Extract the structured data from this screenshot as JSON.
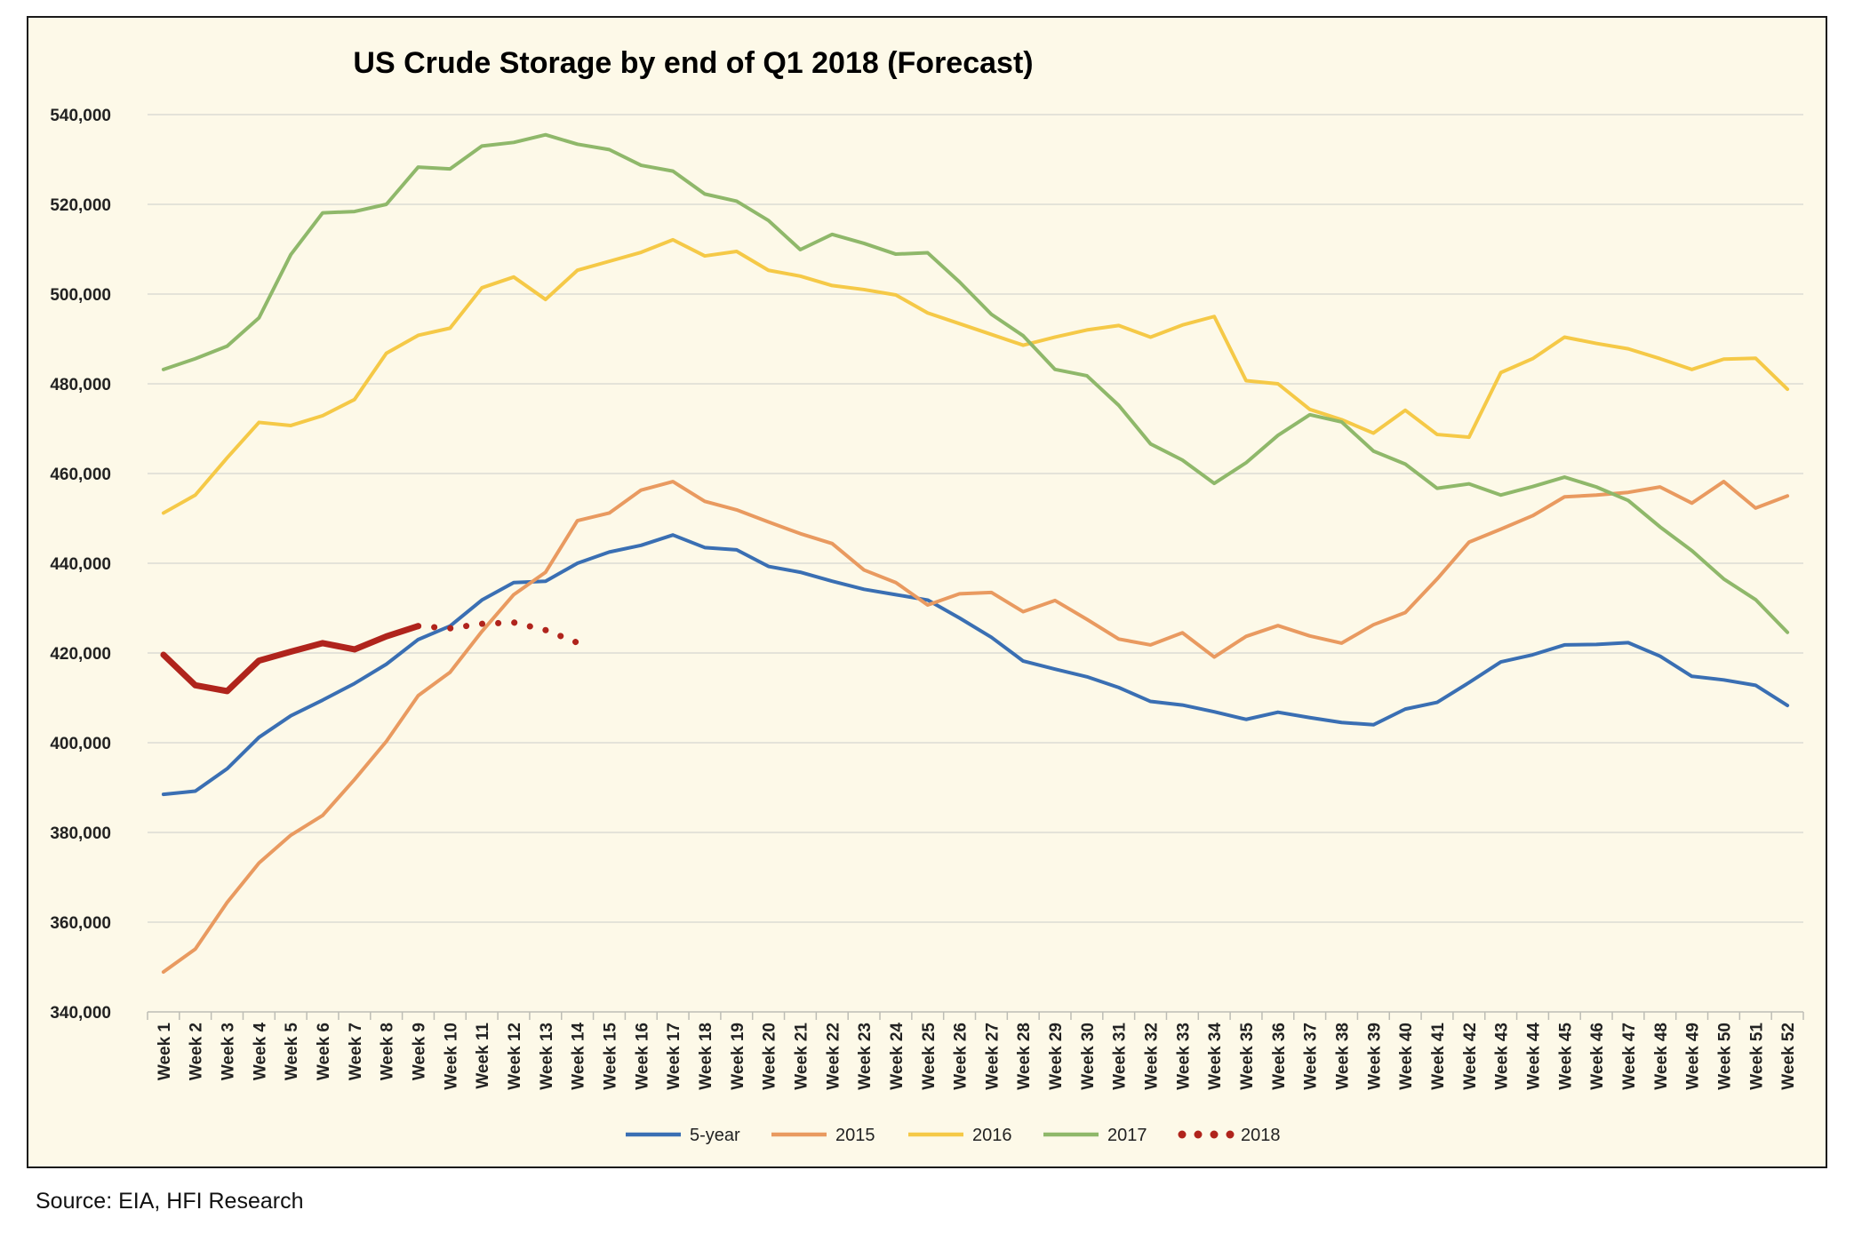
{
  "chart_data": {
    "type": "line",
    "title": "US Crude Storage by end of Q1 2018 (Forecast)",
    "xlabel": "",
    "ylabel": "",
    "ylim": [
      340000,
      540000
    ],
    "y_ticks": [
      540000,
      520000,
      500000,
      480000,
      460000,
      440000,
      420000,
      400000,
      380000,
      360000,
      340000
    ],
    "y_tick_labels": [
      "540,000",
      "520,000",
      "500,000",
      "480,000",
      "460,000",
      "440,000",
      "420,000",
      "400,000",
      "380,000",
      "360,000",
      "340,000"
    ],
    "grid": true,
    "legend_position": "bottom",
    "categories": [
      "Week 1",
      "Week 2",
      "Week 3",
      "Week 4",
      "Week 5",
      "Week 6",
      "Week 7",
      "Week 8",
      "Week 9",
      "Week 10",
      "Week 11",
      "Week 12",
      "Week 13",
      "Week 14",
      "Week 15",
      "Week 16",
      "Week 17",
      "Week 18",
      "Week 19",
      "Week 20",
      "Week 21",
      "Week 22",
      "Week 23",
      "Week 24",
      "Week 25",
      "Week 26",
      "Week 27",
      "Week 28",
      "Week 29",
      "Week 30",
      "Week 31",
      "Week 32",
      "Week 33",
      "Week 34",
      "Week 35",
      "Week 36",
      "Week 37",
      "Week 38",
      "Week 39",
      "Week 40",
      "Week 41",
      "Week 42",
      "Week 43",
      "Week 44",
      "Week 45",
      "Week 46",
      "Week 47",
      "Week 48",
      "Week 49",
      "Week 50",
      "Week 51",
      "Week 52"
    ],
    "series": [
      {
        "name": "5-year",
        "color": "#3a6fb3",
        "style": "solid",
        "values": [
          388500,
          389200,
          394200,
          401200,
          406000,
          409500,
          413200,
          417500,
          423000,
          426000,
          431800,
          435700,
          436000,
          440000,
          442500,
          444000,
          446300,
          443500,
          443000,
          439300,
          438000,
          436000,
          434200,
          433000,
          431800,
          427800,
          423500,
          418200,
          416400,
          414700,
          412300,
          409200,
          408400,
          406900,
          405200,
          406800,
          405600,
          404500,
          404000,
          407500,
          409000,
          413400,
          418000,
          419600,
          421800,
          421900,
          422300,
          419300,
          414800,
          414000,
          412800,
          408300
        ]
      },
      {
        "name": "2015",
        "color": "#e99a60",
        "style": "solid",
        "values": [
          348900,
          354000,
          364400,
          373200,
          379400,
          383800,
          391800,
          400300,
          410500,
          415700,
          424800,
          433000,
          438000,
          449500,
          451200,
          456300,
          458200,
          453800,
          451900,
          449200,
          446600,
          444400,
          438500,
          435700,
          430700,
          433200,
          433500,
          429200,
          431700,
          427500,
          423100,
          421800,
          424500,
          419100,
          423700,
          426100,
          423800,
          422200,
          426300,
          429000,
          436500,
          444700,
          447600,
          450600,
          454800,
          455200,
          455800,
          457000,
          453400,
          458200,
          452300,
          455000
        ]
      },
      {
        "name": "2016",
        "color": "#f5c947",
        "style": "solid",
        "values": [
          451200,
          455200,
          463500,
          471400,
          470700,
          472900,
          476500,
          486800,
          490800,
          492400,
          501400,
          503800,
          498800,
          505300,
          507300,
          509300,
          512100,
          508500,
          509500,
          505300,
          504000,
          501900,
          501000,
          499800,
          495800,
          493400,
          491000,
          488600,
          490400,
          492000,
          493000,
          490400,
          493100,
          495000,
          480700,
          480000,
          474300,
          472000,
          469000,
          474100,
          468700,
          468100,
          482500,
          485600,
          490400,
          489000,
          487800,
          485600,
          483200,
          485500,
          485700,
          478800
        ]
      },
      {
        "name": "2017",
        "color": "#8fb86a",
        "style": "solid",
        "values": [
          483200,
          485600,
          488400,
          494700,
          508800,
          518100,
          518400,
          520000,
          528300,
          527900,
          533000,
          533800,
          535500,
          533400,
          532200,
          528700,
          527400,
          522300,
          520700,
          516400,
          509900,
          513300,
          511300,
          508900,
          509200,
          502700,
          495500,
          490700,
          483200,
          481800,
          475200,
          466600,
          463000,
          457800,
          462400,
          468500,
          473100,
          471500,
          465000,
          462100,
          456700,
          457700,
          455200,
          457100,
          459200,
          457000,
          454000,
          448100,
          442800,
          436500,
          431900,
          424600
        ]
      },
      {
        "name": "2018",
        "color": "#b0241c",
        "style": "solid",
        "values": [
          419600,
          412800,
          411500,
          418300,
          420300,
          422200,
          420800,
          423700,
          426000,
          null,
          null,
          null,
          null,
          null,
          null,
          null,
          null,
          null,
          null,
          null,
          null,
          null,
          null,
          null,
          null,
          null,
          null,
          null,
          null,
          null,
          null,
          null,
          null,
          null,
          null,
          null,
          null,
          null,
          null,
          null,
          null,
          null,
          null,
          null,
          null,
          null,
          null,
          null,
          null,
          null,
          null,
          null
        ]
      },
      {
        "name": "2018",
        "color": "#b0241c",
        "style": "dotted",
        "values": [
          null,
          null,
          null,
          null,
          null,
          null,
          null,
          null,
          426000,
          425500,
          426500,
          426800,
          425100,
          422300,
          null,
          null,
          null,
          null,
          null,
          null,
          null,
          null,
          null,
          null,
          null,
          null,
          null,
          null,
          null,
          null,
          null,
          null,
          null,
          null,
          null,
          null,
          null,
          null,
          null,
          null,
          null,
          null,
          null,
          null,
          null,
          null,
          null,
          null,
          null,
          null,
          null,
          null
        ]
      }
    ],
    "legend": [
      {
        "label": "5-year",
        "color": "#3a6fb3",
        "style": "solid"
      },
      {
        "label": "2015",
        "color": "#e99a60",
        "style": "solid"
      },
      {
        "label": "2016",
        "color": "#f5c947",
        "style": "solid"
      },
      {
        "label": "2017",
        "color": "#8fb86a",
        "style": "solid"
      },
      {
        "label": "2018",
        "color": "#b0241c",
        "style": "dotted"
      }
    ]
  },
  "source_note": "Source: EIA, HFI Research"
}
